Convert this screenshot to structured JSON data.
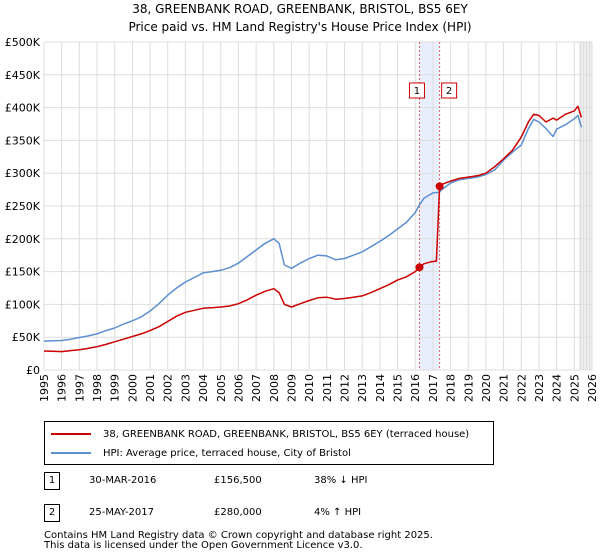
{
  "chart_data": {
    "type": "line",
    "title": "38, GREENBANK ROAD, GREENBANK, BRISTOL, BS5 6EY",
    "subtitle": "Price paid vs. HM Land Registry's House Price Index (HPI)",
    "xlim": [
      1995,
      2026
    ],
    "ylim": [
      0,
      500000
    ],
    "x_ticks": [
      1995,
      1996,
      1997,
      1998,
      1999,
      2000,
      2001,
      2002,
      2003,
      2004,
      2005,
      2006,
      2007,
      2008,
      2009,
      2010,
      2011,
      2012,
      2013,
      2014,
      2015,
      2016,
      2017,
      2018,
      2019,
      2020,
      2021,
      2022,
      2023,
      2024,
      2025,
      2026
    ],
    "y_ticks": [
      0,
      50000,
      100000,
      150000,
      200000,
      250000,
      300000,
      350000,
      400000,
      450000,
      500000
    ],
    "y_tick_labels": [
      "£0",
      "£50K",
      "£100K",
      "£150K",
      "£200K",
      "£250K",
      "£300K",
      "£350K",
      "£400K",
      "£450K",
      "£500K"
    ],
    "grid": true,
    "series": [
      {
        "name": "38, GREENBANK ROAD, GREENBANK, BRISTOL, BS5 6EY (terraced house)",
        "color": "#cc0000",
        "x": [
          1995.0,
          1995.5,
          1996.0,
          1996.5,
          1997.0,
          1997.5,
          1998.0,
          1998.5,
          1999.0,
          1999.5,
          2000.0,
          2000.5,
          2001.0,
          2001.5,
          2002.0,
          2002.5,
          2003.0,
          2003.5,
          2004.0,
          2004.5,
          2005.0,
          2005.5,
          2006.0,
          2006.5,
          2007.0,
          2007.5,
          2008.0,
          2008.3,
          2008.6,
          2009.0,
          2009.5,
          2010.0,
          2010.5,
          2011.0,
          2011.5,
          2012.0,
          2012.5,
          2013.0,
          2013.5,
          2014.0,
          2014.5,
          2015.0,
          2015.5,
          2016.0,
          2016.24,
          2016.5,
          2016.9,
          2017.2,
          2017.38,
          2017.5,
          2018.0,
          2018.5,
          2019.0,
          2019.5,
          2020.0,
          2020.5,
          2021.0,
          2021.5,
          2022.0,
          2022.4,
          2022.7,
          2023.0,
          2023.4,
          2023.8,
          2024.0,
          2024.5,
          2025.0,
          2025.2,
          2025.4
        ],
        "y": [
          29000,
          28500,
          28000,
          29500,
          31000,
          33000,
          35500,
          39000,
          43000,
          47000,
          51000,
          55000,
          60000,
          66000,
          74000,
          82000,
          88000,
          91000,
          94000,
          95000,
          96000,
          97500,
          101000,
          107000,
          114000,
          120000,
          124000,
          118000,
          100000,
          96000,
          101000,
          106000,
          110000,
          111000,
          108000,
          109000,
          111000,
          113000,
          118000,
          124000,
          130000,
          137000,
          142000,
          150000,
          156500,
          162000,
          165000,
          166000,
          280000,
          283000,
          288000,
          292000,
          294000,
          296000,
          300000,
          310000,
          322000,
          335000,
          355000,
          378000,
          390000,
          388000,
          378000,
          384000,
          381000,
          390000,
          395000,
          402000,
          385000
        ]
      },
      {
        "name": "HPI: Average price, terraced house, City of Bristol",
        "color": "#5b8fd0",
        "x": [
          1995.0,
          1995.5,
          1996.0,
          1996.5,
          1997.0,
          1997.5,
          1998.0,
          1998.5,
          1999.0,
          1999.5,
          2000.0,
          2000.5,
          2001.0,
          2001.5,
          2002.0,
          2002.5,
          2003.0,
          2003.5,
          2004.0,
          2004.5,
          2005.0,
          2005.5,
          2006.0,
          2006.5,
          2007.0,
          2007.5,
          2008.0,
          2008.3,
          2008.6,
          2009.0,
          2009.5,
          2010.0,
          2010.5,
          2011.0,
          2011.5,
          2012.0,
          2012.5,
          2013.0,
          2013.5,
          2014.0,
          2014.5,
          2015.0,
          2015.5,
          2016.0,
          2016.24,
          2016.5,
          2017.0,
          2017.38,
          2017.5,
          2018.0,
          2018.5,
          2019.0,
          2019.5,
          2020.0,
          2020.5,
          2021.0,
          2021.5,
          2022.0,
          2022.4,
          2022.7,
          2023.0,
          2023.4,
          2023.8,
          2024.0,
          2024.5,
          2025.0,
          2025.2,
          2025.4
        ],
        "y": [
          44000,
          44500,
          45000,
          47000,
          49500,
          52000,
          55000,
          60000,
          64000,
          70000,
          75000,
          81000,
          90000,
          101000,
          114000,
          125000,
          134000,
          141000,
          148000,
          150000,
          152000,
          156000,
          163000,
          173000,
          183000,
          193000,
          200000,
          193000,
          160000,
          155000,
          163000,
          170000,
          175000,
          174000,
          168000,
          170000,
          175000,
          180000,
          188000,
          196000,
          205000,
          215000,
          225000,
          240000,
          252000,
          262000,
          270000,
          271000,
          275000,
          285000,
          290000,
          292000,
          294000,
          298000,
          305000,
          320000,
          332000,
          343000,
          368000,
          382000,
          378000,
          368000,
          356000,
          367000,
          374000,
          383000,
          388000,
          370000
        ]
      }
    ],
    "transactions": [
      {
        "id": "1",
        "date": "30-MAR-2016",
        "x": 2016.24,
        "price": 156500,
        "price_label": "£156,500",
        "hpi_label": "38% ↓ HPI"
      },
      {
        "id": "2",
        "date": "25-MAY-2017",
        "x": 2017.38,
        "price": 280000,
        "price_label": "£280,000",
        "hpi_label": "4% ↑ HPI"
      }
    ],
    "shaded_ranges": [
      [
        2016.24,
        2017.38
      ],
      [
        2025.25,
        2026.0
      ]
    ]
  },
  "footer": {
    "line1": "Contains HM Land Registry data © Crown copyright and database right 2025.",
    "line2": "This data is licensed under the Open Government Licence v3.0."
  }
}
